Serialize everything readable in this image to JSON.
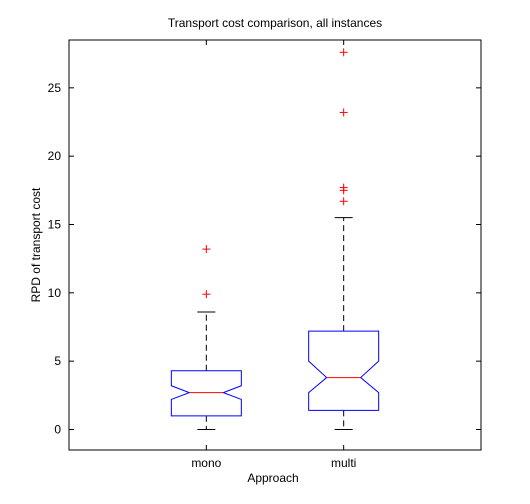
{
  "chart_data": {
    "type": "box",
    "title": "Transport cost comparison, all instances",
    "xlabel": "Approach",
    "ylabel": "RPD of transport cost",
    "categories": [
      "mono",
      "multi"
    ],
    "ylim": [
      -1.5,
      28.5
    ],
    "yticks": [
      0,
      5,
      10,
      15,
      20,
      25
    ],
    "notched": true,
    "grid": false,
    "colors": {
      "box": "#0000ff",
      "median": "#ff0000",
      "whisker": "#000000",
      "outlier": "#ff0000"
    },
    "boxes": [
      {
        "name": "mono",
        "q1": 1.0,
        "median": 2.7,
        "q3": 4.3,
        "notch_low": 2.2,
        "notch_high": 3.2,
        "whisker_low": 0.0,
        "whisker_high": 8.6,
        "outliers": [
          9.9,
          13.2
        ]
      },
      {
        "name": "multi",
        "q1": 1.4,
        "median": 3.8,
        "q3": 7.2,
        "notch_low": 2.7,
        "notch_high": 5.0,
        "whisker_low": 0.0,
        "whisker_high": 15.5,
        "outliers": [
          16.7,
          17.5,
          17.7,
          23.2,
          27.6
        ]
      }
    ]
  }
}
